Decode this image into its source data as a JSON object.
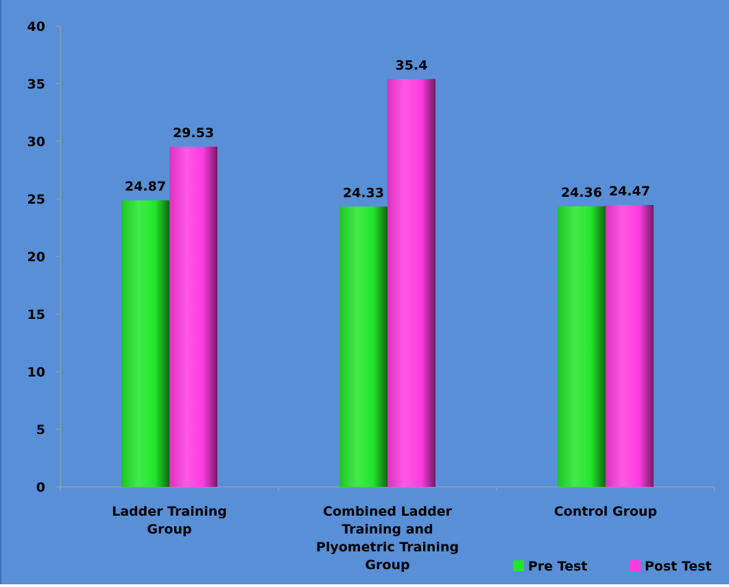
{
  "chart_data": {
    "type": "bar",
    "title": "",
    "xlabel": "",
    "ylabel": "",
    "categories": [
      [
        "Ladder Training",
        "Group"
      ],
      [
        "Combined Ladder",
        "Training  and",
        "Plyometric Training",
        "Group"
      ],
      [
        "Control Group"
      ]
    ],
    "series": [
      {
        "name": "Pre Test",
        "values": [
          24.87,
          24.33,
          24.36
        ],
        "labels": [
          "24.87",
          "24.33",
          "24.36"
        ],
        "color": "#22e62a"
      },
      {
        "name": "Post Test",
        "values": [
          29.53,
          35.4,
          24.47
        ],
        "labels": [
          "29.53",
          "35.4",
          "24.47"
        ],
        "color": "#ff3be0"
      }
    ],
    "ylim": [
      0,
      40
    ],
    "yticks": [
      0,
      5,
      10,
      15,
      20,
      25,
      30,
      35,
      40
    ],
    "grid": false,
    "legend_position": "bottom-right",
    "colors": {
      "plot_background": "#588fd6",
      "axis": "#8ea0b4"
    }
  }
}
